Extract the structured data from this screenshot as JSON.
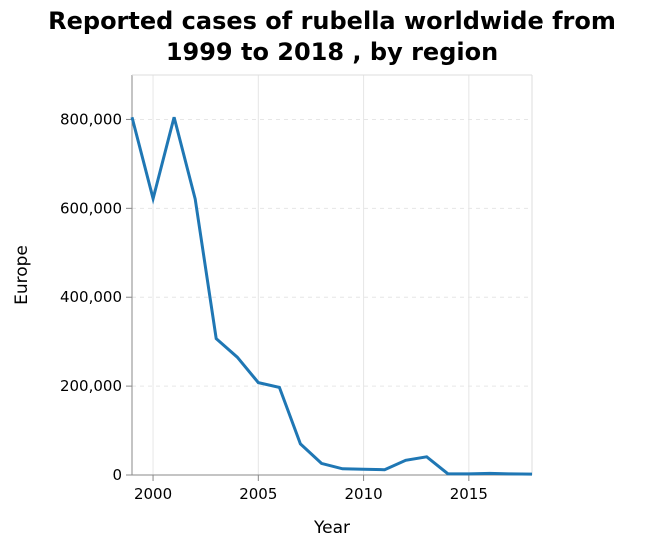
{
  "chart_data": {
    "type": "line",
    "title_lines": [
      "Reported cases of rubella worldwide from",
      "1999 to 2018 , by region"
    ],
    "xlabel": "Year",
    "ylabel": "Europe",
    "xlim": [
      1999,
      2018
    ],
    "ylim": [
      0,
      900000
    ],
    "x_ticks": [
      2000,
      2005,
      2010,
      2015
    ],
    "x_tick_labels": [
      "2000",
      "2005",
      "2010",
      "2015"
    ],
    "y_ticks": [
      0,
      200000,
      400000,
      600000,
      800000
    ],
    "y_tick_labels": [
      "0",
      "200,000",
      "400,000",
      "600,000",
      "800,000"
    ],
    "grid": true,
    "legend": "none",
    "series": [
      {
        "color": "#1f77b4",
        "x": [
          1999,
          2000,
          2001,
          2002,
          2003,
          2004,
          2005,
          2006,
          2007,
          2008,
          2009,
          2010,
          2011,
          2012,
          2013,
          2014,
          2015,
          2016,
          2017,
          2018
        ],
        "values": [
          805000,
          622000,
          805000,
          621000,
          307000,
          265000,
          208000,
          197000,
          70000,
          26000,
          14000,
          13000,
          12000,
          33000,
          41000,
          3000,
          2500,
          3500,
          2500,
          2000
        ]
      }
    ]
  }
}
